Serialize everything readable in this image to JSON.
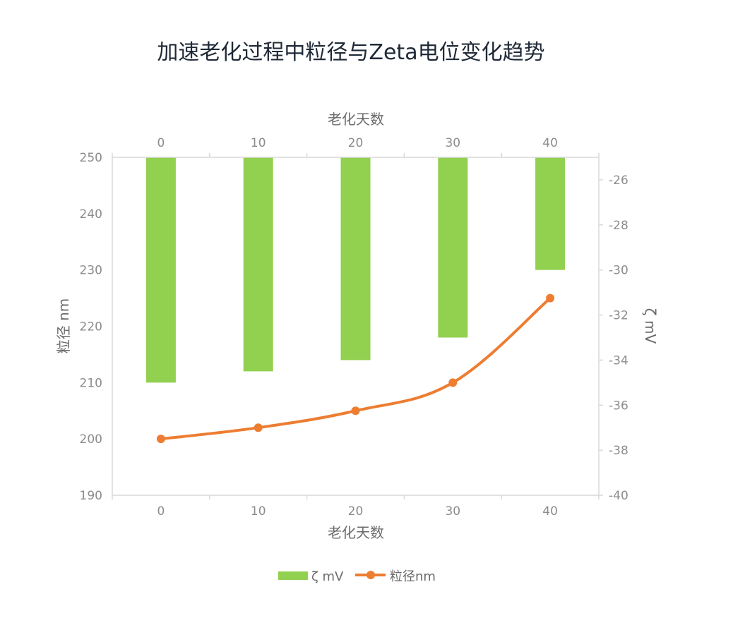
{
  "chart_data": {
    "type": "bar",
    "title": "加速老化过程中粒径与Zeta电位变化趋势",
    "xlabel": "老化天数",
    "x2label": "老化天数",
    "ylabel": "粒径 nm",
    "y2label": "ζ mV",
    "categories": [
      "0",
      "10",
      "20",
      "30",
      "40"
    ],
    "xticks": [
      "0",
      "10",
      "20",
      "30",
      "40"
    ],
    "yticks": [
      "190",
      "200",
      "210",
      "220",
      "230",
      "240",
      "250"
    ],
    "y2ticks": [
      "-26",
      "-28",
      "-30",
      "-32",
      "-34",
      "-36",
      "-38",
      "-40"
    ],
    "ylim": [
      190,
      250
    ],
    "y2lim": [
      -40,
      -25
    ],
    "series": [
      {
        "name": "ζ mV",
        "type": "bar",
        "axis": "secondary",
        "color": "#92d050",
        "values": [
          -35,
          -34.5,
          -34,
          -33,
          -30
        ]
      },
      {
        "name": "粒径nm",
        "type": "line",
        "axis": "primary",
        "color": "#ed7d31",
        "values": [
          200,
          202,
          205,
          210,
          225
        ]
      }
    ],
    "grid": false,
    "legend": "bottom"
  }
}
